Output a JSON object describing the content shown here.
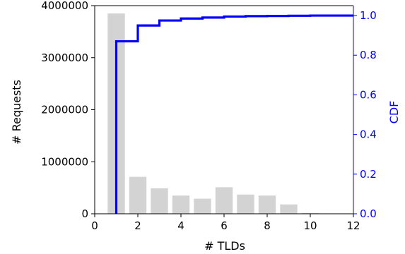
{
  "chart_data": {
    "type": "bar",
    "xlabel": "# TLDs",
    "ylabel": "# Requests",
    "y2label": "CDF",
    "xlim": [
      0,
      12
    ],
    "ylim": [
      0,
      4000000
    ],
    "y2lim": [
      0,
      1.05
    ],
    "x_ticks": [
      "0",
      "2",
      "4",
      "6",
      "8",
      "10",
      "12"
    ],
    "y_ticks": [
      "0",
      "1000000",
      "2000000",
      "3000000",
      "4000000"
    ],
    "y2_ticks": [
      "0.0",
      "0.2",
      "0.4",
      "0.6",
      "0.8",
      "1.0"
    ],
    "grid": false,
    "series": [
      {
        "kind": "bar",
        "axis": "left",
        "color": "#d3d3d3",
        "x": [
          1,
          2,
          3,
          4,
          5,
          6,
          7,
          8,
          9,
          10,
          11
        ],
        "values": [
          3850000,
          710000,
          490000,
          350000,
          290000,
          510000,
          370000,
          350000,
          180000,
          15000,
          4000
        ]
      },
      {
        "kind": "step",
        "axis": "right",
        "color": "#0000ff",
        "x": [
          1,
          2,
          3,
          4,
          5,
          6,
          7,
          8,
          9,
          10,
          11,
          12
        ],
        "values": [
          0.87,
          0.95,
          0.975,
          0.985,
          0.99,
          0.995,
          0.997,
          0.998,
          0.999,
          1.0,
          1.0,
          1.0
        ]
      }
    ]
  }
}
